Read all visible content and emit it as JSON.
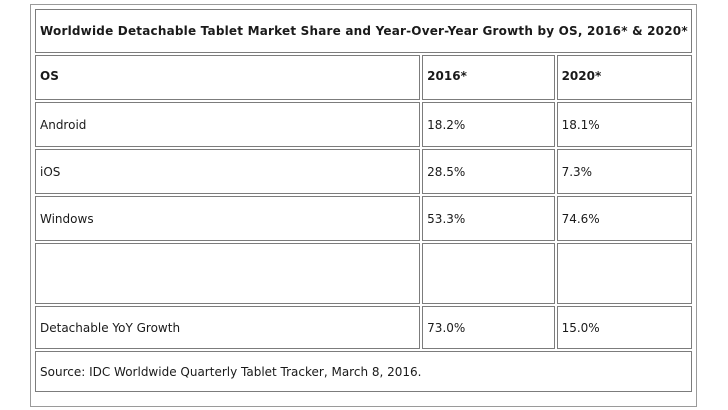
{
  "title": "Worldwide Detachable Tablet Market Share and Year-Over-Year Growth by OS, 2016* & 2020*",
  "columns": [
    "OS",
    "2016*",
    "2020*"
  ],
  "rows": [
    {
      "os": "Android",
      "y2016": "18.2%",
      "y2020": "18.1%"
    },
    {
      "os": "iOS",
      "y2016": "28.5%",
      "y2020": "7.3%"
    },
    {
      "os": "Windows",
      "y2016": "53.3%",
      "y2020": "74.6%"
    }
  ],
  "growth": {
    "label": "Detachable YoY Growth",
    "y2016": "73.0%",
    "y2020": "15.0%"
  },
  "source": "Source: IDC Worldwide Quarterly Tablet Tracker, March 8, 2016."
}
